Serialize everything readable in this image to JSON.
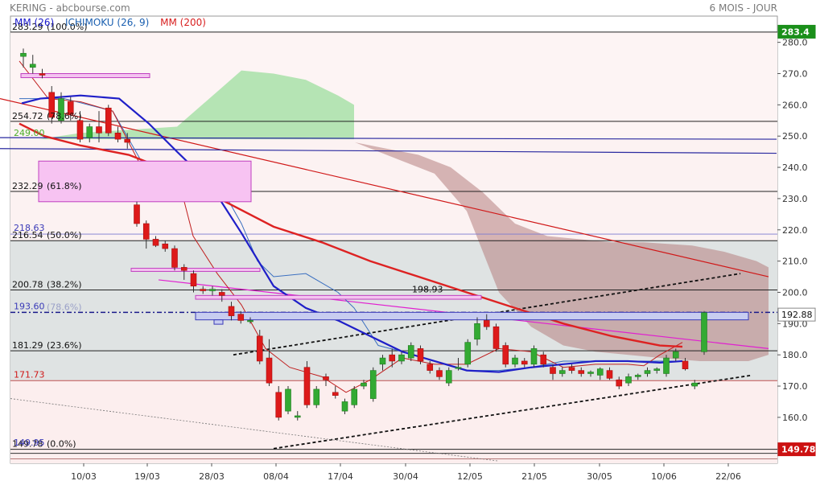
{
  "header": {
    "title": "KERING - abcbourse.com",
    "period": "6 MOIS - JOUR"
  },
  "indicators": [
    {
      "label": "MM (26)",
      "color": "#1a1acc"
    },
    {
      "label": "ICHIMOKU (26, 9)",
      "color": "#1a5fb0"
    },
    {
      "label": "MM (200)",
      "color": "#d81e1e"
    }
  ],
  "chart_data": {
    "type": "candlestick",
    "title": "KERING",
    "ylim": [
      145.3,
      288.4
    ],
    "y_ticks": [
      160,
      170,
      180,
      190,
      200,
      210,
      220,
      230,
      240,
      250,
      260,
      270,
      280
    ],
    "x_ticks": [
      "10/03",
      "19/03",
      "28/03",
      "08/04",
      "17/04",
      "30/04",
      "12/05",
      "21/05",
      "30/05",
      "10/06",
      "22/06"
    ],
    "price_badges": [
      {
        "label": "283.4",
        "value": 283.4,
        "color": "#1a8f1a"
      },
      {
        "label": "192.88",
        "value": 192.88,
        "color": "#ffffff"
      },
      {
        "label": "149.78",
        "value": 149.78,
        "color": "#cc1111"
      }
    ],
    "fibonacci": [
      {
        "value": 283.29,
        "label": "283.29",
        "pct": "(100.0%)"
      },
      {
        "value": 254.72,
        "label": "254.72",
        "pct": "(78.6%)"
      },
      {
        "value": 232.29,
        "label": "232.29",
        "pct": "(61.8%)"
      },
      {
        "value": 216.54,
        "label": "216.54",
        "pct": "(50.0%)"
      },
      {
        "value": 200.78,
        "label": "200.78",
        "pct": "(38.2%)"
      },
      {
        "value": 181.29,
        "label": "181.29",
        "pct": "(23.6%)"
      },
      {
        "value": 149.78,
        "label": "149.78",
        "pct": "(0.0%)"
      }
    ],
    "level_labels": [
      {
        "value": 249.0,
        "label": "249.00",
        "color": "#4cae2a"
      },
      {
        "value": 218.63,
        "label": "218.63",
        "color": "#3a3ab8"
      },
      {
        "value": 193.6,
        "label": "193.60",
        "color": "#3a3ab8"
      },
      {
        "value": 171.73,
        "label": "171.73",
        "color": "#d01818"
      },
      {
        "value": 149.95,
        "label": "149.95",
        "color": "#3a3ab8"
      }
    ],
    "annotations": [
      {
        "label": "198.93",
        "value": 198.93
      },
      {
        "label": "(78.6%)",
        "value": 193.6
      }
    ],
    "candles": [
      [
        275.5,
        278.0,
        272.0,
        276.5
      ],
      [
        272.0,
        276.0,
        270.0,
        273.0
      ],
      [
        270.0,
        271.5,
        268.5,
        269.5
      ],
      [
        264.0,
        266.0,
        254.0,
        256.0
      ],
      [
        255.0,
        264.0,
        254.0,
        262.0
      ],
      [
        261.0,
        262.5,
        255.0,
        257.0
      ],
      [
        255.0,
        258.0,
        248.0,
        249.0
      ],
      [
        249.5,
        254.0,
        248.0,
        253.0
      ],
      [
        253.0,
        258.0,
        248.0,
        251.0
      ],
      [
        259.0,
        260.0,
        250.0,
        251.0
      ],
      [
        251.0,
        253.0,
        248.0,
        249.0
      ],
      [
        249.0,
        251.0,
        246.0,
        248.0
      ],
      [
        228.0,
        229.0,
        221.0,
        222.0
      ],
      [
        222.0,
        223.0,
        214.0,
        217.0
      ],
      [
        217.0,
        218.0,
        214.5,
        215.0
      ],
      [
        215.5,
        216.5,
        213.0,
        214.0
      ],
      [
        214.0,
        215.0,
        207.0,
        208.0
      ],
      [
        208.0,
        209.0,
        204.0,
        207.0
      ],
      [
        206.0,
        207.0,
        200.0,
        202.0
      ],
      [
        201.0,
        202.0,
        199.5,
        200.5
      ],
      [
        200.5,
        202.0,
        199.0,
        201.0
      ],
      [
        200.0,
        201.0,
        197.0,
        199.0
      ],
      [
        195.5,
        197.0,
        191.0,
        192.5
      ],
      [
        193.0,
        194.0,
        190.0,
        191.0
      ],
      [
        191.0,
        192.0,
        190.0,
        191.0
      ],
      [
        186.0,
        188.0,
        177.0,
        178.0
      ],
      [
        179.0,
        185.0,
        170.0,
        171.0
      ],
      [
        168.0,
        170.0,
        159.0,
        160.0
      ],
      [
        162.0,
        170.0,
        161.0,
        169.0
      ],
      [
        160.0,
        162.0,
        159.0,
        160.5
      ],
      [
        176.0,
        178.0,
        163.0,
        164.0
      ],
      [
        164.0,
        170.0,
        163.0,
        169.0
      ],
      [
        173.0,
        174.0,
        170.0,
        172.0
      ],
      [
        168.0,
        170.0,
        166.0,
        167.0
      ],
      [
        162.0,
        166.0,
        161.0,
        165.0
      ],
      [
        164.0,
        170.0,
        163.0,
        169.0
      ],
      [
        170.0,
        172.0,
        169.0,
        171.0
      ],
      [
        166.0,
        176.0,
        165.0,
        175.0
      ],
      [
        177.0,
        180.0,
        175.0,
        179.0
      ],
      [
        180.0,
        182.0,
        176.0,
        178.0
      ],
      [
        178.0,
        181.0,
        177.0,
        180.0
      ],
      [
        179.0,
        184.0,
        178.0,
        183.0
      ],
      [
        182.0,
        183.0,
        177.0,
        178.0
      ],
      [
        177.0,
        178.0,
        174.0,
        175.0
      ],
      [
        175.0,
        176.0,
        172.0,
        173.0
      ],
      [
        171.0,
        176.0,
        170.0,
        175.0
      ],
      [
        176.0,
        179.0,
        175.0,
        176.0
      ],
      [
        177.0,
        185.0,
        176.0,
        184.0
      ],
      [
        185.0,
        192.0,
        183.0,
        190.0
      ],
      [
        191.0,
        193.0,
        188.0,
        189.0
      ],
      [
        189.0,
        190.0,
        181.0,
        182.0
      ],
      [
        183.0,
        184.0,
        176.0,
        177.0
      ],
      [
        177.0,
        180.0,
        176.0,
        179.0
      ],
      [
        178.0,
        179.0,
        176.0,
        177.0
      ],
      [
        177.0,
        183.0,
        176.0,
        182.0
      ],
      [
        180.0,
        181.0,
        176.0,
        177.0
      ],
      [
        176.0,
        177.0,
        172.0,
        174.0
      ],
      [
        174.0,
        176.0,
        173.0,
        175.0
      ],
      [
        176.0,
        177.0,
        174.0,
        175.0
      ],
      [
        175.0,
        176.0,
        173.0,
        174.0
      ],
      [
        174.0,
        175.0,
        173.0,
        174.5
      ],
      [
        173.5,
        176.0,
        172.0,
        175.5
      ],
      [
        175.0,
        176.0,
        172.0,
        172.5
      ],
      [
        172.0,
        173.0,
        169.0,
        170.0
      ],
      [
        171.0,
        174.0,
        170.0,
        173.0
      ],
      [
        173.0,
        174.0,
        172.0,
        173.5
      ],
      [
        174.0,
        176.0,
        173.0,
        175.0
      ],
      [
        175.0,
        176.0,
        174.0,
        175.5
      ],
      [
        174.0,
        180.0,
        173.0,
        179.0
      ],
      [
        179.0,
        182.0,
        178.0,
        181.0
      ],
      [
        178.0,
        179.0,
        175.0,
        175.5
      ],
      [
        170.0,
        172.0,
        169.0,
        171.0
      ],
      [
        181.0,
        194.0,
        180.0,
        193.5
      ]
    ],
    "ma200": [
      [
        24,
        254
      ],
      [
        55,
        250
      ],
      [
        100,
        247
      ],
      [
        160,
        244
      ],
      [
        220,
        238
      ],
      [
        280,
        229
      ],
      [
        340,
        221
      ],
      [
        400,
        216
      ],
      [
        460,
        210
      ],
      [
        520,
        205
      ],
      [
        580,
        200
      ],
      [
        640,
        195
      ],
      [
        700,
        190
      ],
      [
        760,
        186
      ],
      [
        820,
        183
      ],
      [
        848,
        182.6
      ]
    ],
    "ma26": [
      [
        27,
        260.5
      ],
      [
        50,
        262
      ],
      [
        100,
        263
      ],
      [
        148,
        262
      ],
      [
        185,
        254
      ],
      [
        220,
        245
      ],
      [
        260,
        235
      ],
      [
        300,
        219
      ],
      [
        340,
        202
      ],
      [
        380,
        195
      ],
      [
        420,
        191
      ],
      [
        460,
        186
      ],
      [
        500,
        181
      ],
      [
        540,
        178
      ],
      [
        580,
        175
      ],
      [
        620,
        174.5
      ],
      [
        660,
        176
      ],
      [
        700,
        177
      ],
      [
        740,
        178
      ],
      [
        780,
        178
      ],
      [
        820,
        177.5
      ],
      [
        848,
        178
      ]
    ],
    "kijun": [
      [
        24,
        262
      ],
      [
        80,
        262
      ],
      [
        140,
        258
      ],
      [
        180,
        240
      ],
      [
        220,
        240
      ],
      [
        265,
        238
      ],
      [
        300,
        222
      ],
      [
        320,
        210
      ],
      [
        340,
        205
      ],
      [
        380,
        206
      ],
      [
        420,
        200
      ],
      [
        440,
        195
      ],
      [
        470,
        183
      ],
      [
        500,
        181
      ],
      [
        540,
        178
      ],
      [
        580,
        175
      ],
      [
        620,
        175
      ],
      [
        660,
        176
      ],
      [
        700,
        178
      ],
      [
        740,
        178
      ],
      [
        780,
        178
      ],
      [
        820,
        178
      ],
      [
        848,
        178
      ]
    ],
    "tenkan": [
      [
        24,
        274
      ],
      [
        60,
        262
      ],
      [
        100,
        261
      ],
      [
        140,
        258
      ],
      [
        180,
        238
      ],
      [
        220,
        238
      ],
      [
        240,
        218
      ],
      [
        270,
        206
      ],
      [
        300,
        196
      ],
      [
        330,
        182
      ],
      [
        360,
        176
      ],
      [
        400,
        173
      ],
      [
        430,
        168
      ],
      [
        460,
        172
      ],
      [
        500,
        179
      ],
      [
        540,
        177
      ],
      [
        580,
        177
      ],
      [
        620,
        182
      ],
      [
        660,
        181
      ],
      [
        700,
        176
      ],
      [
        740,
        177
      ],
      [
        780,
        177
      ],
      [
        800,
        176.5
      ],
      [
        820,
        180
      ],
      [
        848,
        184
      ]
    ],
    "kumo_a": [
      [
        48,
        249
      ],
      [
        100,
        251
      ],
      [
        160,
        252
      ],
      [
        220,
        253
      ],
      [
        260,
        262
      ],
      [
        300,
        271
      ],
      [
        340,
        270
      ],
      [
        380,
        268
      ],
      [
        420,
        263
      ],
      [
        440,
        260
      ],
      [
        441,
        248
      ],
      [
        500,
        242
      ],
      [
        540,
        238
      ],
      [
        580,
        226
      ],
      [
        600,
        213
      ],
      [
        620,
        200
      ],
      [
        660,
        189
      ],
      [
        700,
        183
      ],
      [
        740,
        181
      ],
      [
        780,
        180
      ],
      [
        820,
        179
      ],
      [
        870,
        178
      ],
      [
        930,
        178
      ],
      [
        955,
        180
      ]
    ],
    "kumo_b": [
      [
        48,
        249
      ],
      [
        440,
        249
      ],
      [
        441,
        248
      ],
      [
        480,
        246
      ],
      [
        520,
        244
      ],
      [
        560,
        240
      ],
      [
        600,
        232
      ],
      [
        640,
        222
      ],
      [
        680,
        218
      ],
      [
        720,
        217
      ],
      [
        760,
        216
      ],
      [
        800,
        216
      ],
      [
        860,
        215
      ],
      [
        900,
        213
      ],
      [
        940,
        210
      ],
      [
        955,
        208
      ]
    ],
    "trendlines": [
      {
        "name": "downtrend-1",
        "from": [
          0,
          262
        ],
        "to": [
          955,
          205
        ],
        "color": "#d01818"
      },
      {
        "name": "resistance-magenta",
        "from": [
          197,
          204
        ],
        "to": [
          955,
          182
        ],
        "color": "#e020d0"
      },
      {
        "name": "channel-blue-upper",
        "from": [
          0,
          249.5
        ],
        "to": [
          965,
          249
        ],
        "color": "#2a2aa0"
      },
      {
        "name": "channel-blue-lower",
        "from": [
          0,
          246
        ],
        "to": [
          965,
          244.5
        ],
        "color": "#2a2aa0"
      },
      {
        "name": "support-dotted",
        "from": [
          340,
          150
        ],
        "to": [
          935,
          173.5
        ],
        "color": "#111111"
      },
      {
        "name": "resistance-dotted",
        "from": [
          290,
          180
        ],
        "to": [
          920,
          206
        ],
        "color": "#111111"
      }
    ]
  }
}
